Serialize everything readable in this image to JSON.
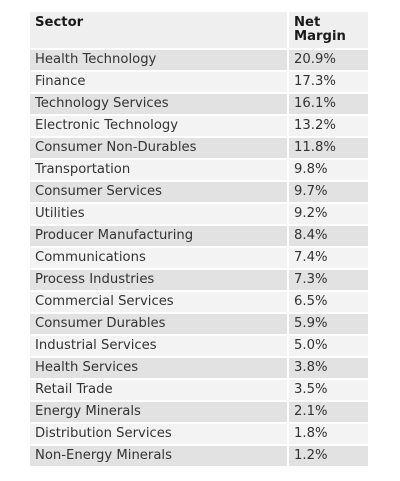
{
  "table": {
    "headers": [
      "Sector",
      "Net Margin"
    ],
    "rows": [
      {
        "sector": "Health Technology",
        "net_margin": "20.9%"
      },
      {
        "sector": "Finance",
        "net_margin": "17.3%"
      },
      {
        "sector": "Technology Services",
        "net_margin": "16.1%"
      },
      {
        "sector": "Electronic Technology",
        "net_margin": "13.2%"
      },
      {
        "sector": "Consumer Non-Durables",
        "net_margin": "11.8%"
      },
      {
        "sector": "Transportation",
        "net_margin": "9.8%"
      },
      {
        "sector": "Consumer Services",
        "net_margin": "9.7%"
      },
      {
        "sector": "Utilities",
        "net_margin": "9.2%"
      },
      {
        "sector": "Producer Manufacturing",
        "net_margin": "8.4%"
      },
      {
        "sector": "Communications",
        "net_margin": "7.4%"
      },
      {
        "sector": "Process Industries",
        "net_margin": "7.3%"
      },
      {
        "sector": "Commercial Services",
        "net_margin": "6.5%"
      },
      {
        "sector": "Consumer Durables",
        "net_margin": "5.9%"
      },
      {
        "sector": "Industrial Services",
        "net_margin": "5.0%"
      },
      {
        "sector": "Health Services",
        "net_margin": "3.8%"
      },
      {
        "sector": "Retail Trade",
        "net_margin": "3.5%"
      },
      {
        "sector": "Energy Minerals",
        "net_margin": "2.1%"
      },
      {
        "sector": "Distribution Services",
        "net_margin": "1.8%"
      },
      {
        "sector": "Non-Energy Minerals",
        "net_margin": "1.2%"
      }
    ]
  }
}
